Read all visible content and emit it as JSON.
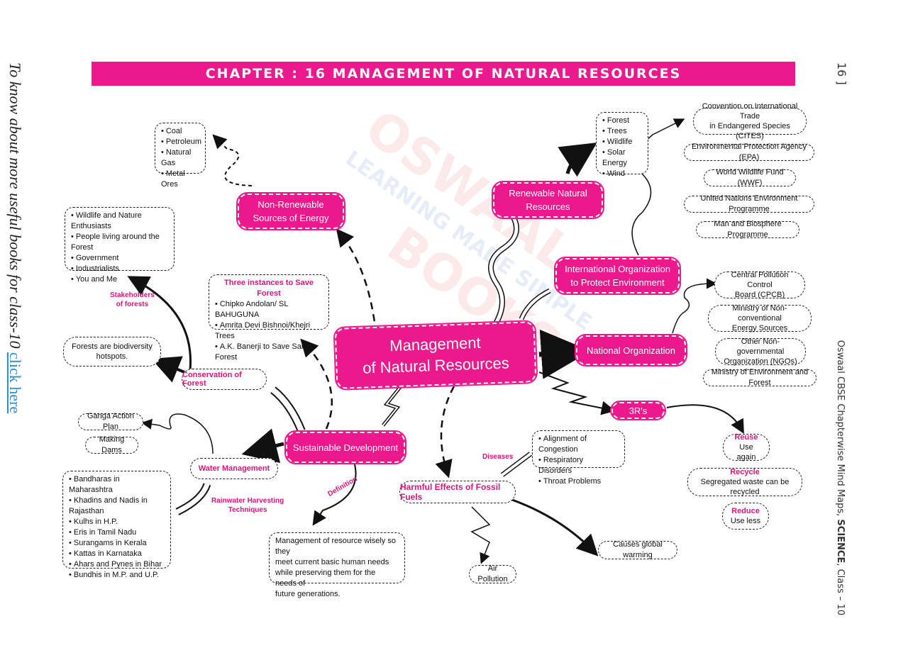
{
  "page": {
    "side_text_left": "To know about more useful books for class-10 ",
    "side_link_left": "click here",
    "page_number": "16 ]",
    "side_text_right_prefix": "Oswaal CBSE Chapterwise Mind Maps, ",
    "side_text_right_bold": "SCIENCE",
    "side_text_right_suffix": ", Class – 10"
  },
  "banner": "CHAPTER : 16 MANAGEMENT OF NATURAL RESOURCES",
  "center_node": {
    "line1": "Management",
    "line2": "of Natural Resources"
  },
  "nodes": {
    "non_renewable": {
      "line1": "Non-Renewable",
      "line2": "Sources of Energy",
      "items": [
        "Coal",
        "Petroleum",
        "Natural Gas",
        "Metal Ores"
      ]
    },
    "renewable": {
      "line1": "Renewable Natural",
      "line2": "Resources",
      "items": [
        "Forest",
        "Trees",
        "Wildlife",
        "Solar Energy",
        "Wind"
      ]
    },
    "international": {
      "line1": "International Organization",
      "line2": "to Protect Environment",
      "items": [
        {
          "l1": "Convention on International Trade",
          "l2": "in Endangered Species (CITES)"
        },
        {
          "l1": "Environmental Protection Agency (EPA)",
          "l2": ""
        },
        {
          "l1": "World Wildlife Fund (WWF)",
          "l2": ""
        },
        {
          "l1": "United Nations Environment Programme",
          "l2": ""
        },
        {
          "l1": "Man and Biosphere Programme",
          "l2": ""
        }
      ]
    },
    "national": {
      "label": "National Organization",
      "items": [
        {
          "l1": "Central Pollution Control",
          "l2": "Board (CPCB)"
        },
        {
          "l1": "Ministry of Non-conventional",
          "l2": "Energy Sources"
        },
        {
          "l1": "Other Non-governmental",
          "l2": "Organization (NGOs)"
        },
        {
          "l1": "Ministry of Environment and Forest",
          "l2": ""
        }
      ]
    },
    "three_rs": {
      "label": "3R's",
      "items": [
        {
          "title": "Reuse",
          "text": "Use again"
        },
        {
          "title": "Recycle",
          "text": "Segregated waste can be recycled"
        },
        {
          "title": "Reduce",
          "text": "Use less"
        }
      ]
    },
    "fossil": {
      "label": "Harmful Effects of Fossil Fuels",
      "diseases_label": "Diseases",
      "diseases": [
        "Alignment of Congestion",
        "Respiratory Disorders",
        "Throat Problems"
      ],
      "global_warming": "Causes global warming",
      "air_pollution": "Air Pollution"
    },
    "sustainable": {
      "label": "Sustainable Development",
      "definition_label": "Definition",
      "definition": [
        "Management of resource wisely so they",
        "meet current basic human needs",
        "while preserving them for the needs of",
        "future generations."
      ]
    },
    "save_forest": {
      "title": "Three instances to Save Forest",
      "items": [
        "Chipko Andolan/ SL BAHUGUNA",
        "Amrita Devi Bishnoi/Khejri Trees",
        "A.K. Banerji to Save Sal Forest"
      ]
    },
    "conservation": {
      "label": "Conservation of Forest",
      "hotspots": [
        "Forests are biodiversity",
        "hotspots."
      ],
      "stakeholders_label": [
        "Stakeholders",
        "of forests"
      ],
      "stakeholders": [
        "Wildlife and Nature Enthusiasts",
        "People living around the Forest",
        "Government",
        "Industrialists",
        "You and Me"
      ]
    },
    "water": {
      "label": "Water Management",
      "ganga": "Ganga Action Plan",
      "dams": "Making Dams",
      "rainwater_label": [
        "Rainwater Harvesting",
        "Techniques"
      ],
      "techniques": [
        "Bandharas in Maharashtra",
        "Khadins and Nadis in Rajasthan",
        "Kulhs in H.P.",
        "Eris in Tamil Nadu",
        "Surangams in Kerala",
        "Kattas in Karnataka",
        "Ahars and Pynes in Bihar",
        "Bundhis in M.P. and U.P."
      ]
    }
  },
  "watermark": {
    "line1": "OSWAAL",
    "line2": "BOOKS",
    "line3": "LEARNING MADE SIMPLE"
  },
  "colors": {
    "accent": "#ec198c",
    "label": "#d6157f",
    "ink": "#222222",
    "link": "#2a8fd6"
  }
}
